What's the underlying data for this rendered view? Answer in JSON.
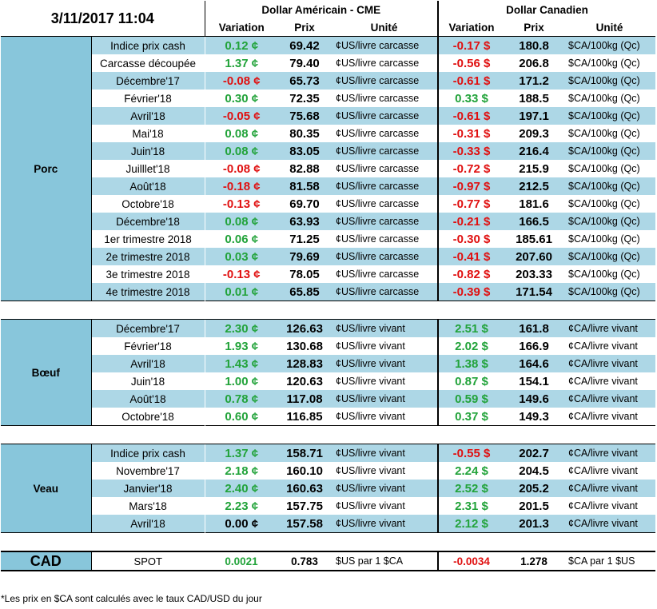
{
  "header": {
    "datetime": "3/11/2017 11:04",
    "usd_group": "Dollar Américain - CME",
    "cad_group": "Dollar Canadien",
    "col_variation": "Variation",
    "col_prix": "Prix",
    "col_unite": "Unité"
  },
  "sections": [
    {
      "name": "Porc",
      "rows": [
        {
          "label": "Indice prix cash",
          "usd_var": "0.12 ¢",
          "usd_price": "69.42",
          "usd_unit": "¢US/livre carcasse",
          "cad_var": "-0.17 $",
          "cad_price": "180.8",
          "cad_unit": "$CA/100kg (Qc)"
        },
        {
          "label": "Carcasse découpée",
          "usd_var": "1.37 ¢",
          "usd_price": "79.40",
          "usd_unit": "¢US/livre carcasse",
          "cad_var": "-0.56 $",
          "cad_price": "206.8",
          "cad_unit": "$CA/100kg (Qc)"
        },
        {
          "label": "Décembre'17",
          "usd_var": "-0.08 ¢",
          "usd_price": "65.73",
          "usd_unit": "¢US/livre carcasse",
          "cad_var": "-0.61 $",
          "cad_price": "171.2",
          "cad_unit": "$CA/100kg (Qc)"
        },
        {
          "label": "Février'18",
          "usd_var": "0.30 ¢",
          "usd_price": "72.35",
          "usd_unit": "¢US/livre carcasse",
          "cad_var": "0.33 $",
          "cad_price": "188.5",
          "cad_unit": "$CA/100kg (Qc)"
        },
        {
          "label": "Avril'18",
          "usd_var": "-0.05 ¢",
          "usd_price": "75.68",
          "usd_unit": "¢US/livre carcasse",
          "cad_var": "-0.61 $",
          "cad_price": "197.1",
          "cad_unit": "$CA/100kg (Qc)"
        },
        {
          "label": "Mai'18",
          "usd_var": "0.08 ¢",
          "usd_price": "80.35",
          "usd_unit": "¢US/livre carcasse",
          "cad_var": "-0.31 $",
          "cad_price": "209.3",
          "cad_unit": "$CA/100kg (Qc)"
        },
        {
          "label": "Juin'18",
          "usd_var": "0.08 ¢",
          "usd_price": "83.05",
          "usd_unit": "¢US/livre carcasse",
          "cad_var": "-0.33 $",
          "cad_price": "216.4",
          "cad_unit": "$CA/100kg (Qc)"
        },
        {
          "label": "Juilllet'18",
          "usd_var": "-0.08 ¢",
          "usd_price": "82.88",
          "usd_unit": "¢US/livre carcasse",
          "cad_var": "-0.72 $",
          "cad_price": "215.9",
          "cad_unit": "$CA/100kg (Qc)"
        },
        {
          "label": "Août'18",
          "usd_var": "-0.18 ¢",
          "usd_price": "81.58",
          "usd_unit": "¢US/livre carcasse",
          "cad_var": "-0.97 $",
          "cad_price": "212.5",
          "cad_unit": "$CA/100kg (Qc)"
        },
        {
          "label": "Octobre'18",
          "usd_var": "-0.13 ¢",
          "usd_price": "69.70",
          "usd_unit": "¢US/livre carcasse",
          "cad_var": "-0.77 $",
          "cad_price": "181.6",
          "cad_unit": "$CA/100kg (Qc)"
        },
        {
          "label": "Décembre'18",
          "usd_var": "0.08 ¢",
          "usd_price": "63.93",
          "usd_unit": "¢US/livre carcasse",
          "cad_var": "-0.21 $",
          "cad_price": "166.5",
          "cad_unit": "$CA/100kg (Qc)"
        },
        {
          "label": "1er trimestre 2018",
          "usd_var": "0.06 ¢",
          "usd_price": "71.25",
          "usd_unit": "¢US/livre carcasse",
          "cad_var": "-0.30 $",
          "cad_price": "185.61",
          "cad_unit": "$CA/100kg (Qc)"
        },
        {
          "label": "2e trimestre 2018",
          "usd_var": "0.03 ¢",
          "usd_price": "79.69",
          "usd_unit": "¢US/livre carcasse",
          "cad_var": "-0.41 $",
          "cad_price": "207.60",
          "cad_unit": "$CA/100kg (Qc)"
        },
        {
          "label": "3e trimestre 2018",
          "usd_var": "-0.13 ¢",
          "usd_price": "78.05",
          "usd_unit": "¢US/livre carcasse",
          "cad_var": "-0.82 $",
          "cad_price": "203.33",
          "cad_unit": "$CA/100kg (Qc)"
        },
        {
          "label": "4e trimestre 2018",
          "usd_var": "0.01 ¢",
          "usd_price": "65.85",
          "usd_unit": "¢US/livre carcasse",
          "cad_var": "-0.39 $",
          "cad_price": "171.54",
          "cad_unit": "$CA/100kg (Qc)"
        }
      ]
    },
    {
      "name": "Bœuf",
      "rows": [
        {
          "label": "Décembre'17",
          "usd_var": "2.30 ¢",
          "usd_price": "126.63",
          "usd_unit": "¢US/livre vivant",
          "cad_var": "2.51 $",
          "cad_price": "161.8",
          "cad_unit": "¢CA/livre vivant"
        },
        {
          "label": "Février'18",
          "usd_var": "1.93 ¢",
          "usd_price": "130.68",
          "usd_unit": "¢US/livre vivant",
          "cad_var": "2.02 $",
          "cad_price": "166.9",
          "cad_unit": "¢CA/livre vivant"
        },
        {
          "label": "Avril'18",
          "usd_var": "1.43 ¢",
          "usd_price": "128.83",
          "usd_unit": "¢US/livre vivant",
          "cad_var": "1.38 $",
          "cad_price": "164.6",
          "cad_unit": "¢CA/livre vivant"
        },
        {
          "label": "Juin'18",
          "usd_var": "1.00 ¢",
          "usd_price": "120.63",
          "usd_unit": "¢US/livre vivant",
          "cad_var": "0.87 $",
          "cad_price": "154.1",
          "cad_unit": "¢CA/livre vivant"
        },
        {
          "label": "Août'18",
          "usd_var": "0.78 ¢",
          "usd_price": "117.08",
          "usd_unit": "¢US/livre vivant",
          "cad_var": "0.59 $",
          "cad_price": "149.6",
          "cad_unit": "¢CA/livre vivant"
        },
        {
          "label": "Octobre'18",
          "usd_var": "0.60 ¢",
          "usd_price": "116.85",
          "usd_unit": "¢US/livre vivant",
          "cad_var": "0.37 $",
          "cad_price": "149.3",
          "cad_unit": "¢CA/livre vivant"
        }
      ]
    },
    {
      "name": "Veau",
      "rows": [
        {
          "label": "Indice prix cash",
          "usd_var": "1.37 ¢",
          "usd_price": "158.71",
          "usd_unit": "¢US/livre vivant",
          "cad_var": "-0.55 $",
          "cad_price": "202.7",
          "cad_unit": "¢CA/livre vivant"
        },
        {
          "label": "Novembre'17",
          "usd_var": "2.18 ¢",
          "usd_price": "160.10",
          "usd_unit": "¢US/livre vivant",
          "cad_var": "2.24 $",
          "cad_price": "204.5",
          "cad_unit": "¢CA/livre vivant"
        },
        {
          "label": "Janvier'18",
          "usd_var": "2.40 ¢",
          "usd_price": "160.63",
          "usd_unit": "¢US/livre vivant",
          "cad_var": "2.52 $",
          "cad_price": "205.2",
          "cad_unit": "¢CA/livre vivant"
        },
        {
          "label": "Mars'18",
          "usd_var": "2.23 ¢",
          "usd_price": "157.75",
          "usd_unit": "¢US/livre vivant",
          "cad_var": "2.31 $",
          "cad_price": "201.5",
          "cad_unit": "¢CA/livre vivant"
        },
        {
          "label": "Avril'18",
          "usd_var": "0.00 ¢",
          "usd_price": "157.58",
          "usd_unit": "¢US/livre vivant",
          "cad_var": "2.12 $",
          "cad_price": "201.3",
          "cad_unit": "¢CA/livre vivant"
        }
      ]
    }
  ],
  "spot": {
    "name": "CAD",
    "label": "SPOT",
    "usd_var": "0.0021",
    "usd_price": "0.783",
    "usd_unit": "$US par 1 $CA",
    "cad_var": "-0.0034",
    "cad_price": "1.278",
    "cad_unit": "$CA par 1 $US"
  },
  "footnote": "*Les  prix en $CA sont calculés avec le taux CAD/USD du jour",
  "colors": {
    "positive": "#22a33a",
    "negative": "#e01010",
    "band": "#add7e6",
    "section": "#88c6db"
  }
}
